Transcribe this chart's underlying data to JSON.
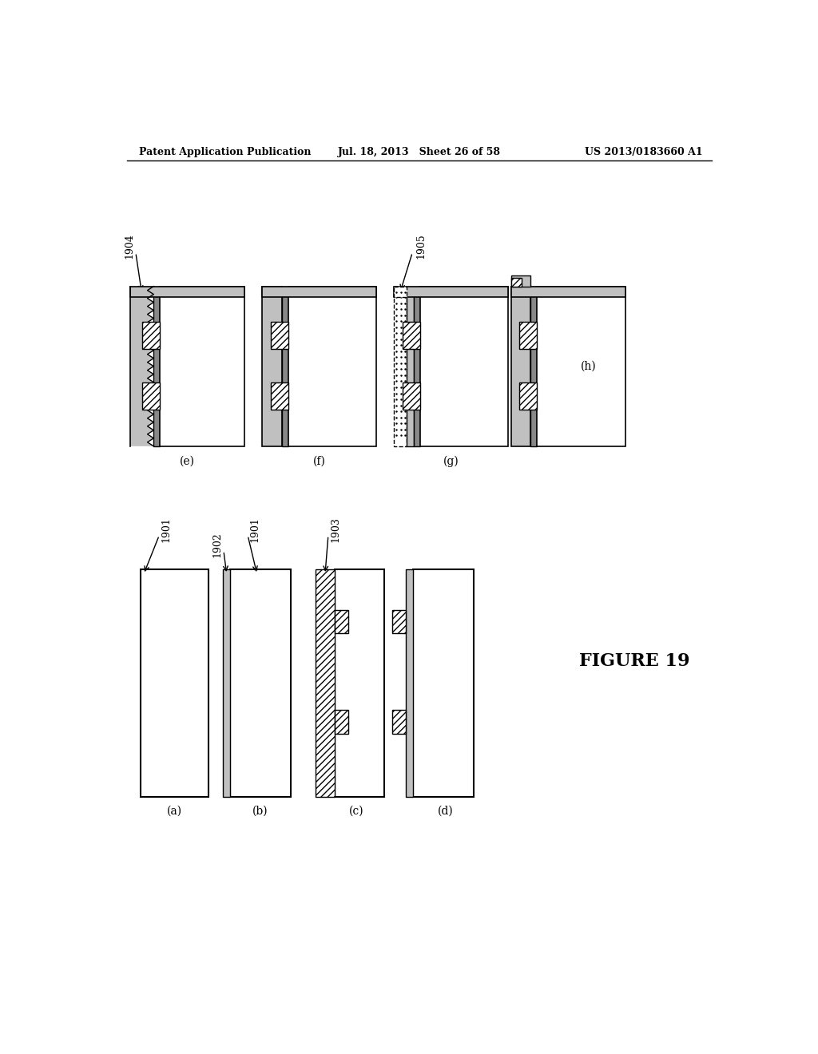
{
  "header_left": "Patent Application Publication",
  "header_center": "Jul. 18, 2013   Sheet 26 of 58",
  "header_right": "US 2013/0183660 A1",
  "title": "FIGURE 19",
  "bg": "#ffffff",
  "gray": "#c0c0c0",
  "dark_gray": "#a0a0a0",
  "hatch_density": "////"
}
